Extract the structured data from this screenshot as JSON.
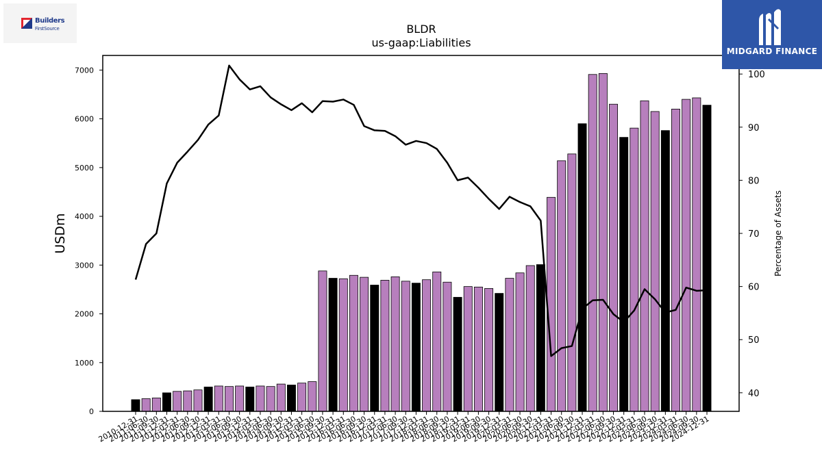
{
  "chart_data": {
    "type": "bar",
    "title": "BLDR",
    "subtitle": "us-gaap:Liabilities",
    "ylabel": "USDm",
    "y2label": "Percentage of Assets",
    "ylim": [
      0,
      7300
    ],
    "y2lim": [
      36.5,
      103.5
    ],
    "yticks": [
      0,
      1000,
      2000,
      3000,
      4000,
      5000,
      6000,
      7000
    ],
    "y2ticks": [
      40,
      50,
      60,
      70,
      80,
      90,
      100
    ],
    "categories": [
      "2010-12-31",
      "2011-06-30",
      "2011-09-30",
      "2011-12-31",
      "2012-03-31",
      "2012-06-30",
      "2012-09-30",
      "2012-12-31",
      "2013-03-31",
      "2013-06-30",
      "2013-09-30",
      "2013-12-31",
      "2014-03-31",
      "2014-06-30",
      "2014-09-30",
      "2014-12-31",
      "2015-03-31",
      "2015-06-30",
      "2015-09-30",
      "2015-12-31",
      "2016-03-31",
      "2016-06-30",
      "2016-09-30",
      "2016-12-31",
      "2017-03-31",
      "2017-06-30",
      "2017-09-30",
      "2017-12-31",
      "2018-03-31",
      "2018-06-30",
      "2018-09-30",
      "2018-12-31",
      "2019-03-31",
      "2019-06-30",
      "2019-09-30",
      "2019-12-31",
      "2020-03-31",
      "2020-06-30",
      "2020-09-30",
      "2020-12-31",
      "2021-03-31",
      "2021-06-30",
      "2021-09-30",
      "2021-12-31",
      "2022-03-31",
      "2022-06-30",
      "2022-09-30",
      "2022-12-31",
      "2023-03-31",
      "2023-06-30",
      "2023-09-30",
      "2023-12-31",
      "2024-03-31",
      "2024-06-30",
      "2024-09-30",
      "2024-12-31"
    ],
    "series": [
      {
        "kind": "bar",
        "values": [
          240,
          260,
          275,
          380,
          410,
          420,
          440,
          500,
          520,
          510,
          520,
          500,
          520,
          510,
          560,
          540,
          580,
          610,
          2880,
          2730,
          2720,
          2790,
          2750,
          2590,
          2690,
          2760,
          2670,
          2630,
          2700,
          2860,
          2650,
          2340,
          2560,
          2550,
          2520,
          2420,
          2730,
          2840,
          2990,
          3010,
          4390,
          5140,
          5280,
          5900,
          6910,
          6930,
          6300,
          5620,
          5810,
          6370,
          6150,
          5760,
          6200,
          6400,
          6430,
          6280
        ],
        "highlight": [
          true,
          false,
          false,
          true,
          false,
          false,
          false,
          true,
          false,
          false,
          false,
          true,
          false,
          false,
          false,
          true,
          false,
          false,
          false,
          true,
          false,
          false,
          false,
          true,
          false,
          false,
          false,
          true,
          false,
          false,
          false,
          true,
          false,
          false,
          false,
          true,
          false,
          false,
          false,
          true,
          false,
          false,
          false,
          true,
          false,
          false,
          false,
          true,
          false,
          false,
          false,
          true,
          false,
          false,
          false,
          true
        ],
        "color": "#b77fbd",
        "highlight_color": "#000000"
      },
      {
        "kind": "line",
        "axis": "right",
        "values": [
          61.3,
          68.0,
          70.0,
          79.4,
          83.3,
          85.4,
          87.6,
          90.5,
          92.2,
          101.6,
          99.0,
          97.1,
          97.7,
          95.6,
          94.3,
          93.2,
          94.5,
          92.8,
          94.9,
          94.8,
          95.2,
          94.2,
          90.2,
          89.4,
          89.3,
          88.3,
          86.7,
          87.4,
          87.0,
          85.9,
          83.3,
          80.0,
          80.5,
          78.6,
          76.5,
          74.6,
          76.9,
          75.9,
          75.1,
          72.4,
          46.9,
          48.4,
          48.8,
          55.8,
          57.4,
          57.5,
          54.8,
          53.3,
          55.5,
          59.5,
          57.6,
          55.1,
          55.6,
          59.8,
          59.2,
          59.3
        ],
        "color": "#000000"
      }
    ],
    "grid": false,
    "legend": "none"
  },
  "logos": {
    "left_line1": "Builders",
    "left_line2": "FirstSource",
    "right_text": "MIDGARD FINANCE"
  }
}
